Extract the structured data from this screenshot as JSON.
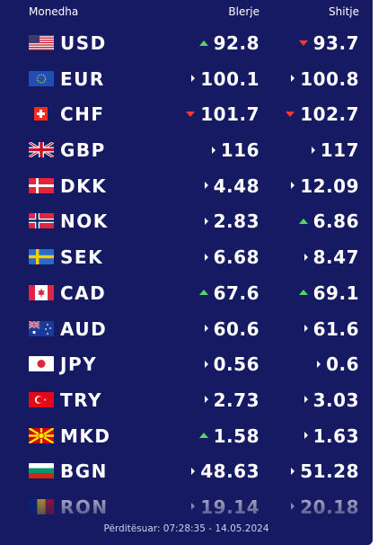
{
  "header": {
    "currency": "Monedha",
    "buy": "Blerje",
    "sell": "Shitje"
  },
  "rates": [
    {
      "code": "USD",
      "flag": "us-flag",
      "buy": "92.8",
      "buy_trend": "up",
      "sell": "93.7",
      "sell_trend": "down"
    },
    {
      "code": "EUR",
      "flag": "eu-flag",
      "buy": "100.1",
      "buy_trend": "flat",
      "sell": "100.8",
      "sell_trend": "flat"
    },
    {
      "code": "CHF",
      "flag": "ch-flag",
      "buy": "101.7",
      "buy_trend": "down",
      "sell": "102.7",
      "sell_trend": "down"
    },
    {
      "code": "GBP",
      "flag": "gb-flag",
      "buy": "116",
      "buy_trend": "flat",
      "sell": "117",
      "sell_trend": "flat"
    },
    {
      "code": "DKK",
      "flag": "dk-flag",
      "buy": "4.48",
      "buy_trend": "flat",
      "sell": "12.09",
      "sell_trend": "flat"
    },
    {
      "code": "NOK",
      "flag": "no-flag",
      "buy": "2.83",
      "buy_trend": "flat",
      "sell": "6.86",
      "sell_trend": "up"
    },
    {
      "code": "SEK",
      "flag": "se-flag",
      "buy": "6.68",
      "buy_trend": "flat",
      "sell": "8.47",
      "sell_trend": "flat"
    },
    {
      "code": "CAD",
      "flag": "ca-flag",
      "buy": "67.6",
      "buy_trend": "up",
      "sell": "69.1",
      "sell_trend": "up"
    },
    {
      "code": "AUD",
      "flag": "au-flag",
      "buy": "60.6",
      "buy_trend": "flat",
      "sell": "61.6",
      "sell_trend": "flat"
    },
    {
      "code": "JPY",
      "flag": "jp-flag",
      "buy": "0.56",
      "buy_trend": "flat",
      "sell": "0.6",
      "sell_trend": "flat"
    },
    {
      "code": "TRY",
      "flag": "tr-flag",
      "buy": "2.73",
      "buy_trend": "flat",
      "sell": "3.03",
      "sell_trend": "flat"
    },
    {
      "code": "MKD",
      "flag": "mk-flag",
      "buy": "1.58",
      "buy_trend": "up",
      "sell": "1.63",
      "sell_trend": "flat"
    },
    {
      "code": "BGN",
      "flag": "bg-flag",
      "buy": "48.63",
      "buy_trend": "flat",
      "sell": "51.28",
      "sell_trend": "flat"
    },
    {
      "code": "RON",
      "flag": "ro-flag",
      "buy": "19.14",
      "buy_trend": "flat",
      "sell": "20.18",
      "sell_trend": "flat"
    }
  ],
  "footer": {
    "updated": "Përditësuar: 07:28:35 - 14.05.2024"
  },
  "colors": {
    "background": "#161a62",
    "up": "#4cd964",
    "down": "#ff3b30"
  }
}
